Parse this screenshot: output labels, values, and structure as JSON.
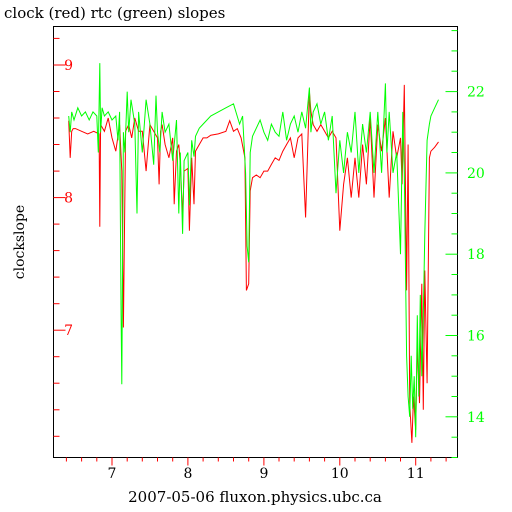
{
  "chart_data": {
    "type": "line",
    "title": "clock (red) rtc (green) slopes",
    "xlabel": "2007-05-06 fluxon.physics.ubc.ca",
    "ylabel": "clockslope",
    "grid": false,
    "legend": "none",
    "colors": {
      "red": "#ff0000",
      "green": "#00ff00",
      "axis": "#000000"
    },
    "x_axis": {
      "lim": [
        6.23,
        11.55
      ],
      "ticks": [
        7,
        8,
        9,
        10,
        11
      ],
      "tick_labels": [
        "7",
        "8",
        "9",
        "10",
        "11"
      ],
      "minor_step": 0.2,
      "tick_color": "#ff0000"
    },
    "y_left": {
      "lim": [
        6.04,
        9.29
      ],
      "ticks": [
        7,
        8,
        9
      ],
      "tick_labels": [
        "7",
        "8",
        "9"
      ],
      "minor_step": 0.2,
      "color": "#ff0000"
    },
    "y_right": {
      "lim": [
        13.0,
        23.6
      ],
      "ticks": [
        14,
        16,
        18,
        20,
        22
      ],
      "tick_labels": [
        "14",
        "16",
        "18",
        "20",
        "22"
      ],
      "minor_step": 0.5,
      "color": "#00ff00"
    },
    "series": [
      {
        "color": "#ff0000",
        "axis": "left",
        "x": [
          6.43,
          6.45,
          6.47,
          6.49,
          6.5,
          6.52,
          6.6,
          6.68,
          6.76,
          6.83,
          6.84,
          6.85,
          6.9,
          6.95,
          7.0,
          7.05,
          7.1,
          7.13,
          7.15,
          7.16,
          7.18,
          7.22,
          7.26,
          7.3,
          7.35,
          7.4,
          7.45,
          7.5,
          7.55,
          7.6,
          7.62,
          7.64,
          7.66,
          7.7,
          7.75,
          7.8,
          7.82,
          7.85,
          7.88,
          7.9,
          7.93,
          7.95,
          8.0,
          8.02,
          8.05,
          8.08,
          8.1,
          8.15,
          8.2,
          8.25,
          8.3,
          8.4,
          8.5,
          8.55,
          8.6,
          8.65,
          8.7,
          8.75,
          8.77,
          8.8,
          8.82,
          8.85,
          8.9,
          8.95,
          9.0,
          9.05,
          9.1,
          9.15,
          9.2,
          9.25,
          9.3,
          9.35,
          9.4,
          9.45,
          9.5,
          9.55,
          9.6,
          9.62,
          9.65,
          9.7,
          9.75,
          9.8,
          9.85,
          9.9,
          9.95,
          10.0,
          10.05,
          10.1,
          10.15,
          10.2,
          10.25,
          10.3,
          10.35,
          10.4,
          10.45,
          10.5,
          10.55,
          10.6,
          10.65,
          10.7,
          10.75,
          10.8,
          10.82,
          10.85,
          10.88,
          10.9,
          10.92,
          10.95,
          10.97,
          11.0,
          11.02,
          11.05,
          11.08,
          11.1,
          11.12,
          11.15,
          11.18,
          11.2,
          11.25,
          11.3
        ],
        "y": [
          8.58,
          8.3,
          8.5,
          8.52,
          8.52,
          8.52,
          8.5,
          8.48,
          8.5,
          8.48,
          7.78,
          8.55,
          8.5,
          8.6,
          8.45,
          8.35,
          8.55,
          8.2,
          7.02,
          7.5,
          8.5,
          8.55,
          8.45,
          8.6,
          8.5,
          8.5,
          8.2,
          8.55,
          8.5,
          8.45,
          8.1,
          8.5,
          8.55,
          8.4,
          8.3,
          8.45,
          7.95,
          8.35,
          8.4,
          8.25,
          7.85,
          8.2,
          8.22,
          7.75,
          8.3,
          7.95,
          8.35,
          8.4,
          8.45,
          8.45,
          8.47,
          8.48,
          8.5,
          8.58,
          8.5,
          8.52,
          8.45,
          8.3,
          7.3,
          7.35,
          8.05,
          8.15,
          8.17,
          8.15,
          8.2,
          8.2,
          8.25,
          8.3,
          8.28,
          8.35,
          8.4,
          8.45,
          8.3,
          8.45,
          8.48,
          7.85,
          8.8,
          8.65,
          8.55,
          8.5,
          8.55,
          8.5,
          8.45,
          8.5,
          8.45,
          7.75,
          8.1,
          8.3,
          8.0,
          8.3,
          8.0,
          8.4,
          8.1,
          8.6,
          8.0,
          8.55,
          8.35,
          8.6,
          8.0,
          8.5,
          8.3,
          8.45,
          8.1,
          8.85,
          7.3,
          8.4,
          6.45,
          6.15,
          6.5,
          6.25,
          6.9,
          6.45,
          7.35,
          6.4,
          7.45,
          6.6,
          8.3,
          8.35,
          8.38,
          8.42
        ]
      },
      {
        "color": "#00ff00",
        "axis": "right",
        "x": [
          6.43,
          6.45,
          6.47,
          6.5,
          6.55,
          6.6,
          6.65,
          6.7,
          6.75,
          6.8,
          6.82,
          6.84,
          6.85,
          6.87,
          6.9,
          6.95,
          7.0,
          7.05,
          7.08,
          7.1,
          7.12,
          7.13,
          7.15,
          7.17,
          7.2,
          7.22,
          7.25,
          7.3,
          7.33,
          7.35,
          7.4,
          7.45,
          7.5,
          7.55,
          7.58,
          7.6,
          7.63,
          7.66,
          7.7,
          7.75,
          7.8,
          7.85,
          7.88,
          7.9,
          7.93,
          7.95,
          8.0,
          8.02,
          8.05,
          8.08,
          8.1,
          8.15,
          8.2,
          8.3,
          8.4,
          8.5,
          8.6,
          8.68,
          8.72,
          8.76,
          8.78,
          8.8,
          8.82,
          8.85,
          8.9,
          8.95,
          9.0,
          9.05,
          9.1,
          9.15,
          9.2,
          9.25,
          9.3,
          9.35,
          9.4,
          9.45,
          9.5,
          9.55,
          9.6,
          9.62,
          9.65,
          9.7,
          9.75,
          9.8,
          9.85,
          9.9,
          9.95,
          10.0,
          10.05,
          10.1,
          10.15,
          10.2,
          10.25,
          10.3,
          10.35,
          10.4,
          10.45,
          10.5,
          10.55,
          10.6,
          10.62,
          10.65,
          10.7,
          10.75,
          10.8,
          10.83,
          10.85,
          10.88,
          10.9,
          10.92,
          10.94,
          10.96,
          10.98,
          11.0,
          11.02,
          11.04,
          11.06,
          11.08,
          11.1,
          11.12,
          11.15,
          11.18,
          11.2,
          11.25,
          11.3
        ],
        "y": [
          21.4,
          21.0,
          21.5,
          21.3,
          21.6,
          21.4,
          21.5,
          21.3,
          21.5,
          21.4,
          20.5,
          22.7,
          21.0,
          21.6,
          21.4,
          21.5,
          21.3,
          21.4,
          20.8,
          21.5,
          16.5,
          14.8,
          21.0,
          20.5,
          22.0,
          21.0,
          21.8,
          21.2,
          19.0,
          21.5,
          20.5,
          21.8,
          21.2,
          20.2,
          21.9,
          21.0,
          20.5,
          21.5,
          21.0,
          21.2,
          20.3,
          21.3,
          19.0,
          20.5,
          18.5,
          20.3,
          20.5,
          19.2,
          20.8,
          20.4,
          20.9,
          21.1,
          21.2,
          21.4,
          21.5,
          21.6,
          21.7,
          21.2,
          21.4,
          20.0,
          18.2,
          17.8,
          20.5,
          20.9,
          21.1,
          21.3,
          21.0,
          20.8,
          21.2,
          21.0,
          20.9,
          21.5,
          20.8,
          21.2,
          21.4,
          21.0,
          21.5,
          21.1,
          22.1,
          21.0,
          21.5,
          21.7,
          21.2,
          21.5,
          20.8,
          21.4,
          19.5,
          20.8,
          20.0,
          21.0,
          20.5,
          21.5,
          20.0,
          21.2,
          20.5,
          21.5,
          20.0,
          21.5,
          20.0,
          22.2,
          20.5,
          21.5,
          20.0,
          20.5,
          18.0,
          21.5,
          20.0,
          15.5,
          14.5,
          14.0,
          15.5,
          14.2,
          15.0,
          13.5,
          16.5,
          14.5,
          17.0,
          15.0,
          16.5,
          18.5,
          20.8,
          21.2,
          21.4,
          21.6,
          21.8
        ]
      }
    ]
  }
}
